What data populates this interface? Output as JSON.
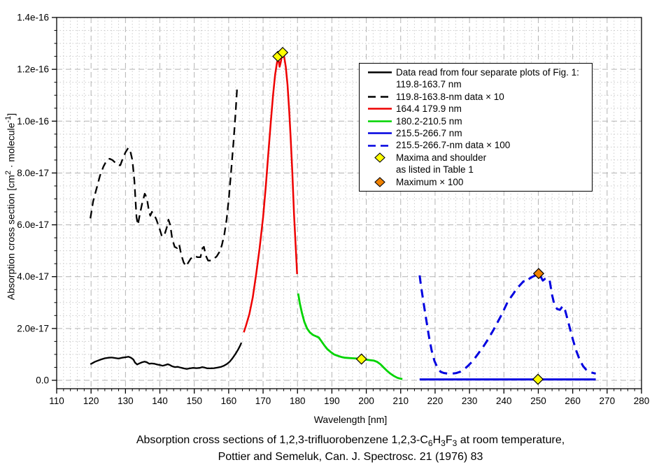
{
  "figure": {
    "background": "#ffffff",
    "plot_background": "#ffffff",
    "grid_major_color": "#b3b3b3",
    "grid_minor_color": "#cccccc",
    "frame_color": "#000000"
  },
  "axes": {
    "x": {
      "label": "Wavelength [nm]",
      "min": 110,
      "max": 280,
      "major_step": 10,
      "minor_step": 2,
      "tick_labels": [
        "110",
        "120",
        "130",
        "140",
        "150",
        "160",
        "170",
        "180",
        "190",
        "200",
        "210",
        "220",
        "230",
        "240",
        "250",
        "260",
        "270",
        "280"
      ]
    },
    "y": {
      "label_segments": [
        {
          "t": "Absorption cross section [cm"
        },
        {
          "sup": "2"
        },
        {
          "t": " · molecule"
        },
        {
          "sup": "-1"
        },
        {
          "t": "]"
        }
      ],
      "ticks": [
        {
          "v": 0,
          "label": "0.0"
        },
        {
          "v": 2,
          "label": "2.0e-17"
        },
        {
          "v": 4,
          "label": "4.0e-17"
        },
        {
          "v": 6,
          "label": "6.0e-17"
        },
        {
          "v": 8,
          "label": "8.0e-17"
        },
        {
          "v": 10,
          "label": "1.0e-16"
        },
        {
          "v": 12,
          "label": "1.2e-16"
        },
        {
          "v": 14,
          "label": "1.4e-16"
        }
      ],
      "unit_note": "tick values v are in units of 1e-17 cm2/molecule"
    }
  },
  "legend": {
    "position": "top-right",
    "items": [
      {
        "sample": "line-solid",
        "color": "#000000",
        "lines": [
          "Data read from four separate plots of Fig. 1:",
          "119.8-163.7 nm"
        ]
      },
      {
        "sample": "line-dashed",
        "color": "#000000",
        "lines": [
          "119.8-163.8-nm data × 10"
        ]
      },
      {
        "sample": "line-solid",
        "color": "#ee0000",
        "lines": [
          "164.4 179.9 nm"
        ]
      },
      {
        "sample": "line-solid",
        "color": "#00d400",
        "lines": [
          "180.2-210.5 nm"
        ]
      },
      {
        "sample": "line-solid",
        "color": "#0000e0",
        "lines": [
          "215.5-266.7 nm"
        ]
      },
      {
        "sample": "line-dashed",
        "color": "#0000e0",
        "lines": [
          "215.5-266.7-nm data × 100"
        ]
      },
      {
        "sample": "diamond",
        "color": "#ffff00",
        "lines": [
          "Maxima and shoulder",
          "as listed in Table 1"
        ]
      },
      {
        "sample": "diamond",
        "color": "#f08200",
        "lines": [
          "Maximum × 100"
        ]
      }
    ]
  },
  "caption": {
    "line1_segments": [
      {
        "t": "Absorption cross sections of 1,2,3-trifluorobenzene 1,2,3-C"
      },
      {
        "sub": "6"
      },
      {
        "t": "H"
      },
      {
        "sub": "3"
      },
      {
        "t": "F"
      },
      {
        "sub": "3"
      },
      {
        "t": " at room temperature,"
      }
    ],
    "line2": "Pottier and Semeluk, Can. J. Spectrosc. 21 (1976) 83"
  },
  "chart_data": {
    "type": "line",
    "title": "",
    "xlabel": "Wavelength [nm]",
    "ylabel": "Absorption cross section [cm2 · molecule-1]",
    "x_range": [
      110,
      280
    ],
    "y_range": [
      0,
      14
    ],
    "y_units": "1e-17 cm2/molecule",
    "grid": true,
    "legend_position": "top-right",
    "series": [
      {
        "name": "119.8-163.7 nm",
        "color": "#000000",
        "style": "solid",
        "width": 2.3,
        "points": [
          [
            119.8,
            0.62
          ],
          [
            120.5,
            0.67
          ],
          [
            121.2,
            0.72
          ],
          [
            122,
            0.76
          ],
          [
            123,
            0.81
          ],
          [
            124,
            0.85
          ],
          [
            125,
            0.87
          ],
          [
            126,
            0.88
          ],
          [
            127,
            0.86
          ],
          [
            128,
            0.84
          ],
          [
            129,
            0.87
          ],
          [
            130,
            0.89
          ],
          [
            130.9,
            0.91
          ],
          [
            131.6,
            0.87
          ],
          [
            132.3,
            0.8
          ],
          [
            132.8,
            0.68
          ],
          [
            133.4,
            0.61
          ],
          [
            134,
            0.65
          ],
          [
            134.7,
            0.69
          ],
          [
            135.5,
            0.72
          ],
          [
            136.2,
            0.7
          ],
          [
            136.9,
            0.64
          ],
          [
            137.6,
            0.65
          ],
          [
            138.4,
            0.64
          ],
          [
            139.2,
            0.61
          ],
          [
            140,
            0.59
          ],
          [
            140.8,
            0.56
          ],
          [
            141.6,
            0.59
          ],
          [
            142.3,
            0.62
          ],
          [
            142.9,
            0.59
          ],
          [
            143.6,
            0.54
          ],
          [
            144.4,
            0.51
          ],
          [
            145.2,
            0.52
          ],
          [
            146,
            0.49
          ],
          [
            146.9,
            0.46
          ],
          [
            147.8,
            0.44
          ],
          [
            148.7,
            0.46
          ],
          [
            149.6,
            0.48
          ],
          [
            150.6,
            0.47
          ],
          [
            151.6,
            0.48
          ],
          [
            152.3,
            0.51
          ],
          [
            153,
            0.49
          ],
          [
            153.8,
            0.46
          ],
          [
            154.8,
            0.46
          ],
          [
            155.8,
            0.47
          ],
          [
            156.8,
            0.49
          ],
          [
            157.8,
            0.52
          ],
          [
            158.7,
            0.57
          ],
          [
            159.5,
            0.63
          ],
          [
            160.3,
            0.72
          ],
          [
            161.1,
            0.85
          ],
          [
            161.9,
            1.0
          ],
          [
            162.7,
            1.18
          ],
          [
            163.3,
            1.33
          ],
          [
            163.7,
            1.45
          ]
        ]
      },
      {
        "name": "119.8-163.8-nm data × 10",
        "color": "#000000",
        "style": "dashed",
        "dash": "11,7",
        "width": 2.3,
        "points": [
          [
            119.8,
            6.25
          ],
          [
            120.6,
            6.9
          ],
          [
            121.6,
            7.4
          ],
          [
            122.6,
            7.9
          ],
          [
            123.6,
            8.25
          ],
          [
            124.6,
            8.5
          ],
          [
            125.4,
            8.55
          ],
          [
            126.2,
            8.5
          ],
          [
            127,
            8.4
          ],
          [
            127.8,
            8.3
          ],
          [
            128.5,
            8.3
          ],
          [
            129.2,
            8.55
          ],
          [
            130,
            8.8
          ],
          [
            130.8,
            8.97
          ],
          [
            131.4,
            8.85
          ],
          [
            132,
            8.5
          ],
          [
            132.6,
            7.7
          ],
          [
            133.2,
            6.3
          ],
          [
            133.6,
            6.0
          ],
          [
            134.1,
            6.35
          ],
          [
            134.8,
            6.8
          ],
          [
            135.6,
            7.2
          ],
          [
            136.2,
            7.05
          ],
          [
            136.8,
            6.55
          ],
          [
            137.2,
            6.35
          ],
          [
            137.7,
            6.5
          ],
          [
            138.3,
            6.4
          ],
          [
            139,
            6.2
          ],
          [
            139.8,
            5.9
          ],
          [
            140.6,
            5.55
          ],
          [
            141.3,
            5.6
          ],
          [
            142,
            5.9
          ],
          [
            142.5,
            6.2
          ],
          [
            143,
            6.0
          ],
          [
            143.6,
            5.45
          ],
          [
            144.3,
            5.15
          ],
          [
            145,
            5.1
          ],
          [
            145.6,
            5.25
          ],
          [
            146.2,
            4.85
          ],
          [
            146.9,
            4.55
          ],
          [
            147.6,
            4.4
          ],
          [
            148.3,
            4.55
          ],
          [
            149,
            4.7
          ],
          [
            150,
            4.8
          ],
          [
            151,
            4.75
          ],
          [
            151.8,
            4.75
          ],
          [
            152.4,
            5.1
          ],
          [
            152.8,
            5.15
          ],
          [
            153.4,
            4.8
          ],
          [
            154,
            4.62
          ],
          [
            154.8,
            4.62
          ],
          [
            155.6,
            4.68
          ],
          [
            156.5,
            4.78
          ],
          [
            157.3,
            4.95
          ],
          [
            158,
            5.2
          ],
          [
            158.7,
            5.6
          ],
          [
            159.4,
            6.2
          ],
          [
            160.1,
            7.1
          ],
          [
            160.8,
            8.2
          ],
          [
            161.4,
            9.2
          ],
          [
            162,
            10.3
          ],
          [
            162.5,
            11.4
          ]
        ]
      },
      {
        "name": "164.4 179.9 nm",
        "color": "#ee0000",
        "style": "solid",
        "width": 2.5,
        "points": [
          [
            164.4,
            1.85
          ],
          [
            165,
            2.1
          ],
          [
            166,
            2.55
          ],
          [
            167,
            3.2
          ],
          [
            168,
            4.1
          ],
          [
            169,
            5.1
          ],
          [
            170,
            6.3
          ],
          [
            170.8,
            7.5
          ],
          [
            171.5,
            8.7
          ],
          [
            172.2,
            9.9
          ],
          [
            172.9,
            11.0
          ],
          [
            173.5,
            11.8
          ],
          [
            174.1,
            12.3
          ],
          [
            174.5,
            12.35
          ],
          [
            174.8,
            12.1
          ],
          [
            175.1,
            12.25
          ],
          [
            175.6,
            12.6
          ],
          [
            176.1,
            12.5
          ],
          [
            176.6,
            12.1
          ],
          [
            177.1,
            11.4
          ],
          [
            177.6,
            10.4
          ],
          [
            178,
            9.4
          ],
          [
            178.5,
            8.0
          ],
          [
            179,
            6.4
          ],
          [
            179.5,
            5.1
          ],
          [
            179.9,
            4.1
          ]
        ]
      },
      {
        "name": "180.2-210.5 nm",
        "color": "#00d400",
        "style": "solid",
        "width": 2.8,
        "points": [
          [
            180.2,
            3.35
          ],
          [
            180.7,
            2.95
          ],
          [
            181.3,
            2.6
          ],
          [
            182,
            2.25
          ],
          [
            182.8,
            2.0
          ],
          [
            183.6,
            1.85
          ],
          [
            184.5,
            1.75
          ],
          [
            185.4,
            1.7
          ],
          [
            186.2,
            1.65
          ],
          [
            187,
            1.5
          ],
          [
            187.8,
            1.35
          ],
          [
            188.7,
            1.2
          ],
          [
            189.6,
            1.1
          ],
          [
            190.6,
            1.0
          ],
          [
            191.6,
            0.95
          ],
          [
            192.7,
            0.9
          ],
          [
            193.8,
            0.87
          ],
          [
            195,
            0.86
          ],
          [
            196.2,
            0.85
          ],
          [
            197.4,
            0.84
          ],
          [
            198.6,
            0.82
          ],
          [
            199.8,
            0.8
          ],
          [
            201,
            0.78
          ],
          [
            202.2,
            0.76
          ],
          [
            203.2,
            0.71
          ],
          [
            204.1,
            0.62
          ],
          [
            205,
            0.5
          ],
          [
            206,
            0.37
          ],
          [
            207,
            0.26
          ],
          [
            208,
            0.17
          ],
          [
            209,
            0.1
          ],
          [
            210,
            0.06
          ],
          [
            210.5,
            0.05
          ]
        ]
      },
      {
        "name": "215.5-266.7 nm",
        "color": "#0000e0",
        "style": "solid",
        "width": 3,
        "points": [
          [
            215.5,
            0.035
          ],
          [
            266.7,
            0.035
          ]
        ]
      },
      {
        "name": "215.5-266.7-nm data × 100",
        "color": "#0000e0",
        "style": "dashed",
        "dash": "12,8",
        "width": 3,
        "points": [
          [
            215.5,
            4.05
          ],
          [
            216,
            3.55
          ],
          [
            216.7,
            2.95
          ],
          [
            217.4,
            2.35
          ],
          [
            218.2,
            1.7
          ],
          [
            219,
            1.15
          ],
          [
            219.8,
            0.75
          ],
          [
            220.7,
            0.48
          ],
          [
            221.6,
            0.33
          ],
          [
            222.6,
            0.28
          ],
          [
            223.8,
            0.26
          ],
          [
            225,
            0.26
          ],
          [
            226.2,
            0.28
          ],
          [
            227.3,
            0.33
          ],
          [
            228.4,
            0.42
          ],
          [
            229.5,
            0.55
          ],
          [
            230.6,
            0.7
          ],
          [
            231.7,
            0.88
          ],
          [
            232.8,
            1.08
          ],
          [
            233.9,
            1.28
          ],
          [
            235,
            1.5
          ],
          [
            236,
            1.72
          ],
          [
            237,
            1.95
          ],
          [
            238,
            2.2
          ],
          [
            239,
            2.45
          ],
          [
            240,
            2.72
          ],
          [
            241,
            3.0
          ],
          [
            242,
            3.2
          ],
          [
            242.8,
            3.35
          ],
          [
            243.5,
            3.5
          ],
          [
            244.2,
            3.6
          ],
          [
            245,
            3.72
          ],
          [
            245.7,
            3.82
          ],
          [
            246.3,
            3.78
          ],
          [
            247,
            3.88
          ],
          [
            247.7,
            3.95
          ],
          [
            248.4,
            4.0
          ],
          [
            249.2,
            4.05
          ],
          [
            250,
            4.1
          ],
          [
            250.7,
            4.0
          ],
          [
            251.3,
            3.85
          ],
          [
            252,
            3.92
          ],
          [
            252.7,
            3.95
          ],
          [
            253.3,
            3.85
          ],
          [
            254,
            3.3
          ],
          [
            254.7,
            2.9
          ],
          [
            255.5,
            2.75
          ],
          [
            256.3,
            2.72
          ],
          [
            257.1,
            2.87
          ],
          [
            257.8,
            2.7
          ],
          [
            258.5,
            2.35
          ],
          [
            259.3,
            1.95
          ],
          [
            260.1,
            1.55
          ],
          [
            261,
            1.15
          ],
          [
            262,
            0.8
          ],
          [
            263,
            0.55
          ],
          [
            264,
            0.4
          ],
          [
            265,
            0.32
          ],
          [
            266,
            0.28
          ],
          [
            266.7,
            0.26
          ]
        ]
      }
    ],
    "markers": [
      {
        "shape": "diamond",
        "meaning": "maximum",
        "color": "#ffff00",
        "x": 174.3,
        "y": 12.5
      },
      {
        "shape": "diamond",
        "meaning": "maximum",
        "color": "#ffff00",
        "x": 175.7,
        "y": 12.65
      },
      {
        "shape": "diamond",
        "meaning": "shoulder",
        "color": "#ffff00",
        "x": 198.6,
        "y": 0.82
      },
      {
        "shape": "diamond",
        "meaning": "maximum",
        "color": "#ffff00",
        "x": 249.9,
        "y": 0.04
      },
      {
        "shape": "diamond",
        "meaning": "maximum x100",
        "color": "#f08200",
        "x": 250.1,
        "y": 4.12
      }
    ]
  }
}
